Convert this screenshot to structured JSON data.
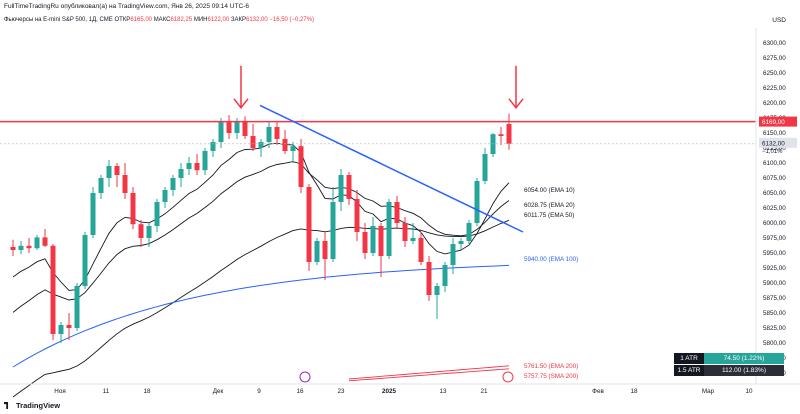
{
  "header": {
    "attribution": "FullTimeTradingRu опубликовал(а) на TradingView.com, Янв 26, 2025 09:14 UTC-6",
    "instrument": "Фьючерсы на E-mini S&P 500, 1Д, CME",
    "open_label": "ОТКР",
    "open_value": "6165,00",
    "high_label": "МАКС",
    "high_value": "6182,25",
    "low_label": "МИН",
    "low_value": "6122,00",
    "close_label": "ЗАКР",
    "close_value": "6132,00",
    "change": "−16,50 (−0,27%)",
    "currency": "USD"
  },
  "footer": {
    "brand": "TradingView"
  },
  "atr": [
    {
      "name": "1 ATR",
      "value": "74.50 (1.22%)"
    },
    {
      "name": "1.5 ATR",
      "value": "112.00 (1.83%)"
    }
  ],
  "colors": {
    "up": "#26a69a",
    "down": "#f23645",
    "ema": "#131722",
    "ema100": "#2962ff",
    "trendline": "#2962ff",
    "resistance": "#f23645",
    "sma200": "#f23645"
  },
  "chart_data": {
    "type": "candlestick",
    "ylim": [
      5735,
      6325
    ],
    "y_ticks": [
      "5750,00",
      "5775,00",
      "5800,00",
      "5825,00",
      "5850,00",
      "5875,00",
      "5900,00",
      "5925,00",
      "5950,00",
      "5975,00",
      "6000,00",
      "6025,00",
      "6050,00",
      "6075,00",
      "6100,00",
      "6125,00",
      "6150,00",
      "6175,00",
      "6200,00",
      "6225,00",
      "6250,00",
      "6275,00",
      "6300,00"
    ],
    "x_ticks": [
      "Ноя",
      "11",
      "18",
      "Дек",
      "9",
      "16",
      "23",
      "2025",
      "13",
      "21",
      "Фев",
      "18",
      "Мар",
      "10"
    ],
    "candles": [
      {
        "o": 5960,
        "h": 5972,
        "l": 5945,
        "c": 5955
      },
      {
        "o": 5955,
        "h": 5970,
        "l": 5948,
        "c": 5962
      },
      {
        "o": 5962,
        "h": 5975,
        "l": 5950,
        "c": 5958
      },
      {
        "o": 5958,
        "h": 5980,
        "l": 5955,
        "c": 5976
      },
      {
        "o": 5976,
        "h": 5990,
        "l": 5960,
        "c": 5962
      },
      {
        "o": 5962,
        "h": 5965,
        "l": 5805,
        "c": 5815
      },
      {
        "o": 5815,
        "h": 5835,
        "l": 5800,
        "c": 5830
      },
      {
        "o": 5830,
        "h": 5850,
        "l": 5805,
        "c": 5825
      },
      {
        "o": 5825,
        "h": 5900,
        "l": 5820,
        "c": 5895
      },
      {
        "o": 5895,
        "h": 5985,
        "l": 5890,
        "c": 5980
      },
      {
        "o": 5980,
        "h": 6060,
        "l": 5975,
        "c": 6050
      },
      {
        "o": 6050,
        "h": 6080,
        "l": 6040,
        "c": 6075
      },
      {
        "o": 6075,
        "h": 6105,
        "l": 6060,
        "c": 6095
      },
      {
        "o": 6095,
        "h": 6100,
        "l": 6060,
        "c": 6080
      },
      {
        "o": 6080,
        "h": 6100,
        "l": 6040,
        "c": 6050
      },
      {
        "o": 6050,
        "h": 6060,
        "l": 5990,
        "c": 5998
      },
      {
        "o": 5998,
        "h": 6005,
        "l": 5960,
        "c": 5975
      },
      {
        "o": 5975,
        "h": 6000,
        "l": 5960,
        "c": 5995
      },
      {
        "o": 5995,
        "h": 6040,
        "l": 5985,
        "c": 6035
      },
      {
        "o": 6035,
        "h": 6060,
        "l": 6025,
        "c": 6055
      },
      {
        "o": 6055,
        "h": 6080,
        "l": 6045,
        "c": 6075
      },
      {
        "o": 6075,
        "h": 6100,
        "l": 6060,
        "c": 6090
      },
      {
        "o": 6090,
        "h": 6110,
        "l": 6080,
        "c": 6100
      },
      {
        "o": 6100,
        "h": 6115,
        "l": 6080,
        "c": 6088
      },
      {
        "o": 6088,
        "h": 6125,
        "l": 6080,
        "c": 6120
      },
      {
        "o": 6120,
        "h": 6140,
        "l": 6110,
        "c": 6135
      },
      {
        "o": 6135,
        "h": 6175,
        "l": 6125,
        "c": 6168
      },
      {
        "o": 6168,
        "h": 6180,
        "l": 6140,
        "c": 6150
      },
      {
        "o": 6150,
        "h": 6175,
        "l": 6140,
        "c": 6170
      },
      {
        "o": 6170,
        "h": 6178,
        "l": 6140,
        "c": 6145
      },
      {
        "o": 6145,
        "h": 6165,
        "l": 6120,
        "c": 6125
      },
      {
        "o": 6125,
        "h": 6140,
        "l": 6110,
        "c": 6135
      },
      {
        "o": 6135,
        "h": 6168,
        "l": 6125,
        "c": 6160
      },
      {
        "o": 6160,
        "h": 6170,
        "l": 6130,
        "c": 6140
      },
      {
        "o": 6140,
        "h": 6155,
        "l": 6115,
        "c": 6120
      },
      {
        "o": 6120,
        "h": 6135,
        "l": 6100,
        "c": 6128
      },
      {
        "o": 6128,
        "h": 6140,
        "l": 6050,
        "c": 6060
      },
      {
        "o": 6060,
        "h": 6065,
        "l": 5920,
        "c": 5935
      },
      {
        "o": 5935,
        "h": 5975,
        "l": 5930,
        "c": 5970
      },
      {
        "o": 5970,
        "h": 5985,
        "l": 5905,
        "c": 5940
      },
      {
        "o": 5940,
        "h": 6060,
        "l": 5935,
        "c": 6035
      },
      {
        "o": 6035,
        "h": 6090,
        "l": 6020,
        "c": 6080
      },
      {
        "o": 6080,
        "h": 6085,
        "l": 6030,
        "c": 6040
      },
      {
        "o": 6040,
        "h": 6055,
        "l": 5970,
        "c": 5985
      },
      {
        "o": 5985,
        "h": 6000,
        "l": 5940,
        "c": 5950
      },
      {
        "o": 5950,
        "h": 6010,
        "l": 5945,
        "c": 5995
      },
      {
        "o": 5995,
        "h": 6000,
        "l": 5910,
        "c": 5945
      },
      {
        "o": 5945,
        "h": 6040,
        "l": 5940,
        "c": 6035
      },
      {
        "o": 6035,
        "h": 6045,
        "l": 5990,
        "c": 6000
      },
      {
        "o": 6000,
        "h": 6010,
        "l": 5960,
        "c": 5970
      },
      {
        "o": 5970,
        "h": 6000,
        "l": 5965,
        "c": 5975
      },
      {
        "o": 5975,
        "h": 5985,
        "l": 5930,
        "c": 5935
      },
      {
        "o": 5935,
        "h": 5945,
        "l": 5870,
        "c": 5880
      },
      {
        "o": 5880,
        "h": 5900,
        "l": 5840,
        "c": 5895
      },
      {
        "o": 5895,
        "h": 5935,
        "l": 5885,
        "c": 5930
      },
      {
        "o": 5930,
        "h": 5975,
        "l": 5915,
        "c": 5965
      },
      {
        "o": 5965,
        "h": 5975,
        "l": 5955,
        "c": 5970
      },
      {
        "o": 5970,
        "h": 6005,
        "l": 5965,
        "c": 6000
      },
      {
        "o": 6000,
        "h": 6075,
        "l": 5995,
        "c": 6070
      },
      {
        "o": 6070,
        "h": 6125,
        "l": 6065,
        "c": 6115
      },
      {
        "o": 6115,
        "h": 6150,
        "l": 6110,
        "c": 6148
      },
      {
        "o": 6148,
        "h": 6160,
        "l": 6130,
        "c": 6145
      },
      {
        "o": 6165,
        "h": 6182.25,
        "l": 6122,
        "c": 6132
      }
    ],
    "indicators": [
      {
        "name": "EMA 10",
        "value": "6054.00"
      },
      {
        "name": "EMA 20",
        "value": "6028.75"
      },
      {
        "name": "EMA 50",
        "value": "6011.75"
      },
      {
        "name": "EMA 100",
        "value": "5940.00"
      },
      {
        "name": "EMA 200",
        "value": "5761.50"
      },
      {
        "name": "SMA 200",
        "value": "5757.75"
      }
    ],
    "price_labels": {
      "resistance": "6169,00",
      "last": "6132,00",
      "last_change": "−1,01%"
    },
    "resistance_level": 6169
  }
}
